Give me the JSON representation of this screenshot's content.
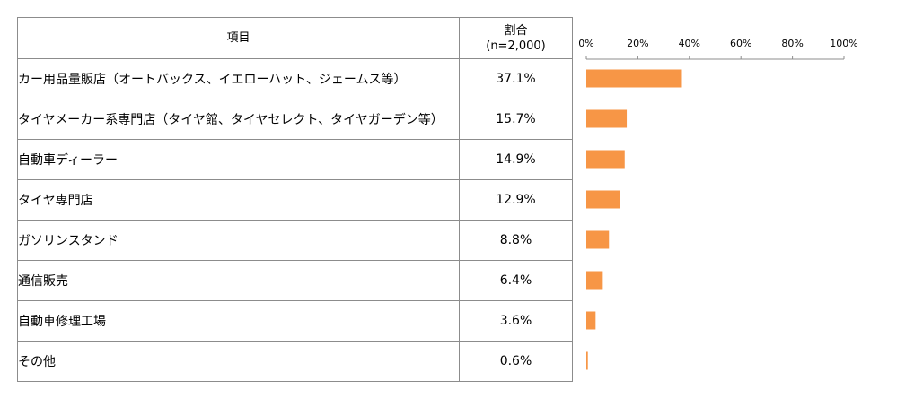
{
  "table": {
    "header_item": "項目",
    "header_ratio_line1": "割合",
    "header_ratio_line2": "(n=2,000)"
  },
  "chart_data": {
    "type": "bar",
    "orientation": "horizontal",
    "categories": [
      "カー用品量販店（オートバックス、イエローハット、ジェームス等）",
      "タイヤメーカー系専門店（タイヤ館、タイヤセレクト、タイヤガーデン等）",
      "自動車ディーラー",
      "タイヤ専門店",
      "ガソリンスタンド",
      "通信販売",
      "自動車修理工場",
      "その他"
    ],
    "values": [
      37.1,
      15.7,
      14.9,
      12.9,
      8.8,
      6.4,
      3.6,
      0.6
    ],
    "value_labels": [
      "37.1%",
      "15.7%",
      "14.9%",
      "12.9%",
      "8.8%",
      "6.4%",
      "3.6%",
      "0.6%"
    ],
    "xlim": [
      0,
      100
    ],
    "ticks": [
      "0%",
      "20%",
      "40%",
      "60%",
      "80%",
      "100%"
    ],
    "tick_values": [
      0,
      20,
      40,
      60,
      80,
      100
    ],
    "bar_color": "#f79646",
    "grid": false
  }
}
